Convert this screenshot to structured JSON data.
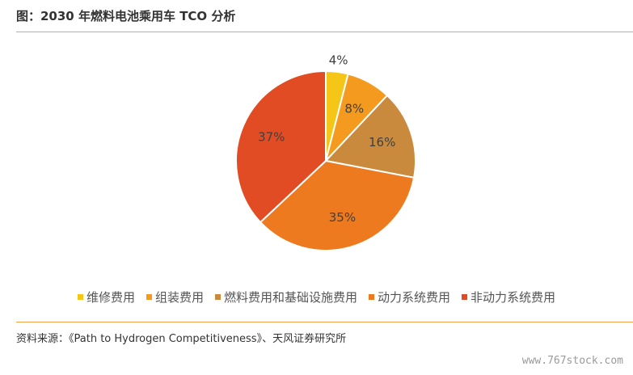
{
  "header": {
    "title": "图：2030 年燃料电池乘用车 TCO 分析"
  },
  "chart_data": {
    "type": "pie",
    "title": "",
    "legend_position": "bottom",
    "slices": [
      {
        "name": "维修费用",
        "value": 4,
        "label": "4%",
        "color": "#f5c518"
      },
      {
        "name": "组装费用",
        "value": 8,
        "label": "8%",
        "color": "#f39a1f"
      },
      {
        "name": "燃料费用和基础设施费用",
        "value": 16,
        "label": "16%",
        "color": "#c98a3d"
      },
      {
        "name": "动力系统费用",
        "value": 35,
        "label": "35%",
        "color": "#ee7a1f"
      },
      {
        "name": "非动力系统费用",
        "value": 37,
        "label": "37%",
        "color": "#e14c24"
      }
    ]
  },
  "footer": {
    "source": "资料来源：《Path to Hydrogen Competitiveness》、天风证券研究所",
    "watermark": "www.767stock.com"
  }
}
